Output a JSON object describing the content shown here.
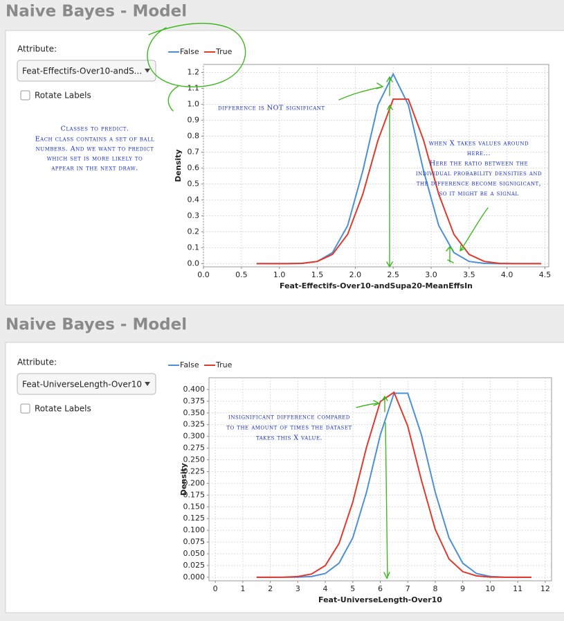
{
  "panels": [
    {
      "title": "Naive Bayes - Model",
      "attribute_label": "Attribute:",
      "attribute_value": "Feat-Effectifs-Over10-andS...",
      "checkbox_label": "Rotate Labels",
      "note": [
        "Classes to predict.",
        "Each class contains a set of ball",
        "numbers. And we want to predict",
        "which set is more likely to",
        "appear in the next draw."
      ]
    },
    {
      "title": "Naive Bayes - Model",
      "attribute_label": "Attribute:",
      "attribute_value": "Feat-UniverseLength-Over10",
      "checkbox_label": "Rotate Labels"
    }
  ],
  "chart_data": [
    {
      "type": "line",
      "x_label": "Feat-Effectifs-Over10-andSupa20-MeanEffsIn",
      "y_label": "Density",
      "x": [
        0.7,
        0.9,
        1.1,
        1.3,
        1.5,
        1.7,
        1.9,
        2.1,
        2.3,
        2.5,
        2.7,
        2.9,
        3.1,
        3.3,
        3.5,
        3.7,
        3.9,
        4.1,
        4.3,
        4.45
      ],
      "series": [
        {
          "name": "False",
          "color": "#4a8fd8",
          "values": [
            0,
            0,
            0.0002,
            0.002,
            0.014,
            0.069,
            0.239,
            0.583,
            0.996,
            1.19,
            0.996,
            0.583,
            0.239,
            0.069,
            0.014,
            0.002,
            0.0002,
            0,
            0,
            0
          ]
        },
        {
          "name": "True",
          "color": "#e0392b",
          "values": [
            0,
            0,
            0.0003,
            0.002,
            0.014,
            0.058,
            0.184,
            0.436,
            0.775,
            1.032,
            1.032,
            0.775,
            0.436,
            0.184,
            0.058,
            0.014,
            0.002,
            0.0003,
            0,
            0
          ]
        }
      ],
      "xlim": [
        0,
        4.55
      ],
      "ylim": [
        -0.02,
        1.25
      ],
      "xticks": [
        {
          "value": 0,
          "label": "0.0"
        },
        0.5,
        {
          "value": 1,
          "label": "1.0"
        },
        1.5,
        {
          "value": 2,
          "label": "2.0"
        },
        2.5,
        {
          "value": 3,
          "label": "3.0"
        },
        3.5,
        {
          "value": 4,
          "label": "4.0"
        },
        4.5
      ],
      "yticks": [
        {
          "value": 0,
          "label": "0.0"
        },
        0.1,
        0.2,
        0.3,
        0.4,
        0.5,
        0.6,
        0.7,
        0.8,
        0.9,
        {
          "value": 1,
          "label": "1.0"
        },
        1.1,
        1.2
      ],
      "grid": true,
      "annotations": [
        [
          "difference is NOT significant"
        ],
        [
          "when X takes values around",
          "here...",
          "Here the ratio between the",
          "individual probability densities and",
          "the difference become signigicant,",
          "so it might be a signal"
        ]
      ]
    },
    {
      "type": "line",
      "x_label": "Feat-UniverseLength-Over10",
      "y_label": "Density",
      "x": [
        1.5,
        2,
        2.5,
        3,
        3.5,
        4,
        4.5,
        5,
        5.5,
        6,
        6.5,
        7,
        7.5,
        8,
        8.5,
        9,
        9.5,
        10,
        10.5,
        11,
        11.5
      ],
      "series": [
        {
          "name": "False",
          "color": "#4a8fd8",
          "values": [
            0,
            0,
            0,
            0.0003,
            0.0018,
            0.008,
            0.03,
            0.084,
            0.181,
            0.303,
            0.392,
            0.392,
            0.303,
            0.181,
            0.084,
            0.03,
            0.008,
            0.0018,
            0.0003,
            0,
            0
          ]
        },
        {
          "name": "True",
          "color": "#e0392b",
          "values": [
            0,
            0,
            0.0002,
            0.0015,
            0.007,
            0.025,
            0.072,
            0.16,
            0.277,
            0.374,
            0.394,
            0.322,
            0.206,
            0.102,
            0.039,
            0.012,
            0.003,
            0.0005,
            0.0001,
            0,
            0
          ]
        }
      ],
      "xlim": [
        -0.23,
        12.23
      ],
      "ylim": [
        -0.0075,
        0.425
      ],
      "xticks": [
        0,
        1,
        2,
        3,
        4,
        5,
        6,
        7,
        8,
        9,
        10,
        11,
        12
      ],
      "yticks": [
        {
          "value": 0,
          "label": "0.000"
        },
        {
          "value": 0.025,
          "label": "0.025"
        },
        {
          "value": 0.05,
          "label": "0.050"
        },
        {
          "value": 0.075,
          "label": "0.075"
        },
        {
          "value": 0.1,
          "label": "0.100"
        },
        {
          "value": 0.125,
          "label": "0.125"
        },
        {
          "value": 0.15,
          "label": "0.150"
        },
        {
          "value": 0.175,
          "label": "0.175"
        },
        {
          "value": 0.2,
          "label": "0.200"
        },
        {
          "value": 0.225,
          "label": "0.225"
        },
        {
          "value": 0.25,
          "label": "0.250"
        },
        {
          "value": 0.275,
          "label": "0.275"
        },
        {
          "value": 0.3,
          "label": "0.300"
        },
        {
          "value": 0.325,
          "label": "0.325"
        },
        {
          "value": 0.35,
          "label": "0.350"
        },
        {
          "value": 0.375,
          "label": "0.375"
        },
        {
          "value": 0.4,
          "label": "0.400"
        }
      ],
      "grid": true,
      "annotations": [
        [
          "insignificant difference compared",
          "to the amount of times the dataset",
          "takes this X value."
        ]
      ]
    }
  ]
}
